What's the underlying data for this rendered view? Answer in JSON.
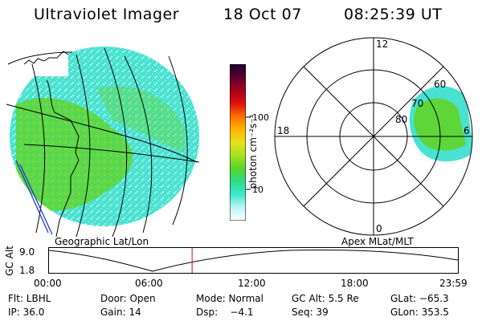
{
  "header": {
    "instrument": "Ultraviolet Imager",
    "date": "18 Oct 07",
    "time": "08:25:39 UT"
  },
  "colors": {
    "accent_line": "#c8102e",
    "aurora_green": "#55d62a",
    "aurora_cyan": "#3ee8cf"
  },
  "colorbar": {
    "unit_label": "photon cm⁻²s⁻¹",
    "ticks": [
      "100",
      "10"
    ],
    "stops": [
      "#ffffff",
      "#c0f4f4",
      "#3ee8cf",
      "#2cdc88",
      "#55d62a",
      "#a8e020",
      "#e6e21c",
      "#ffb300",
      "#f87000",
      "#e01010",
      "#a8001c",
      "#5a0030",
      "#1a0030"
    ]
  },
  "panels": {
    "geo": {
      "caption": "Geographic Lat/Lon"
    },
    "polar": {
      "caption": "Apex MLat/MLT",
      "mlt_labels": [
        "12",
        "18",
        "6",
        "0"
      ],
      "lat_labels": [
        "60",
        "70",
        "80"
      ]
    }
  },
  "altitude_plot": {
    "ylabel": "GC Alt",
    "yticks": [
      "9.0",
      "1.8"
    ],
    "xticks": [
      "00:00",
      "06:00",
      "12:00",
      "18:00",
      "23:59"
    ],
    "current_time_fraction": 0.35
  },
  "info": {
    "row1": [
      {
        "key": "flt",
        "text": "Flt: LBHL"
      },
      {
        "key": "door",
        "text": "Door: Open"
      },
      {
        "key": "mode",
        "text": "Mode: Normal"
      },
      {
        "key": "gcalt",
        "text": "GC Alt: 5.5 Re"
      },
      {
        "key": "glat",
        "text": "GLat: −65.3"
      }
    ],
    "row2": [
      {
        "key": "ip",
        "text": "IP: 36.0"
      },
      {
        "key": "gain",
        "text": "Gain: 14"
      },
      {
        "key": "dsp",
        "text": "Dsp:    −4.1"
      },
      {
        "key": "seq",
        "text": "Seq: 39"
      },
      {
        "key": "glon",
        "text": "GLon: 353.5"
      }
    ]
  }
}
